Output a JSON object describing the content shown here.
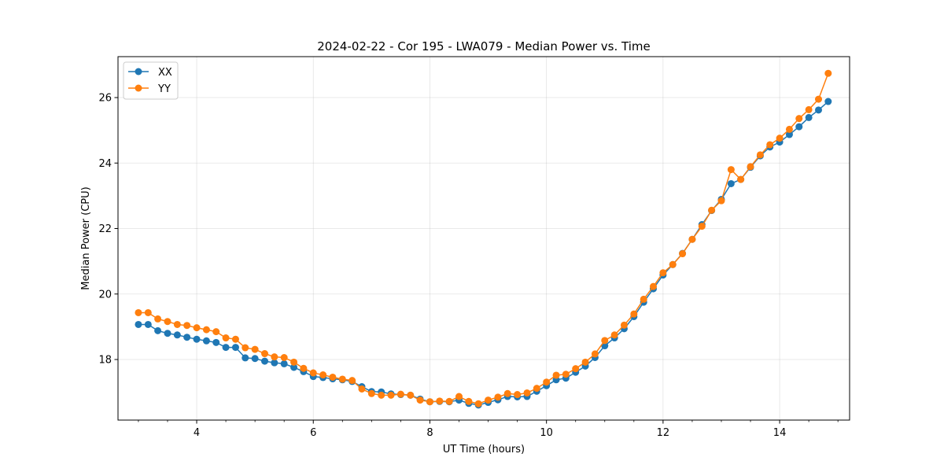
{
  "chart_data": {
    "type": "line",
    "title": "2024-02-22 - Cor 195 - LWA079 - Median Power vs. Time",
    "xlabel": "UT Time (hours)",
    "ylabel": "Median Power (CPU)",
    "xlim": [
      2.65,
      15.2
    ],
    "ylim": [
      16.15,
      27.25
    ],
    "xticks": [
      4,
      6,
      8,
      10,
      12,
      14
    ],
    "xtick_labels": [
      "4",
      "6",
      "8",
      "10",
      "12",
      "14"
    ],
    "yticks": [
      18,
      20,
      22,
      24,
      26
    ],
    "ytick_labels": [
      "18",
      "20",
      "22",
      "24",
      "26"
    ],
    "grid": true,
    "legend_position": "top-left",
    "x": [
      3.0,
      3.167,
      3.333,
      3.5,
      3.667,
      3.833,
      4.0,
      4.167,
      4.333,
      4.5,
      4.667,
      4.833,
      5.0,
      5.167,
      5.333,
      5.5,
      5.667,
      5.833,
      6.0,
      6.167,
      6.333,
      6.5,
      6.667,
      6.833,
      7.0,
      7.167,
      7.333,
      7.5,
      7.667,
      7.833,
      8.0,
      8.167,
      8.333,
      8.5,
      8.667,
      8.833,
      9.0,
      9.167,
      9.333,
      9.5,
      9.667,
      9.833,
      10.0,
      10.167,
      10.333,
      10.5,
      10.667,
      10.833,
      11.0,
      11.167,
      11.333,
      11.5,
      11.667,
      11.833,
      12.0,
      12.167,
      12.333,
      12.5,
      12.667,
      12.833,
      13.0,
      13.167,
      13.333,
      13.5,
      13.667,
      13.833,
      14.0,
      14.167,
      14.333,
      14.5,
      14.667,
      14.833
    ],
    "series": [
      {
        "name": "XX",
        "color": "#1f77b4",
        "values": [
          19.07,
          19.07,
          18.88,
          18.8,
          18.75,
          18.68,
          18.62,
          18.57,
          18.52,
          18.37,
          18.37,
          18.05,
          18.03,
          17.95,
          17.9,
          17.87,
          17.76,
          17.63,
          17.48,
          17.45,
          17.41,
          17.38,
          17.33,
          17.17,
          17.02,
          17.01,
          16.95,
          16.93,
          16.91,
          16.79,
          16.71,
          16.72,
          16.71,
          16.76,
          16.66,
          16.61,
          16.69,
          16.77,
          16.87,
          16.86,
          16.87,
          17.03,
          17.2,
          17.38,
          17.43,
          17.61,
          17.8,
          18.06,
          18.42,
          18.66,
          18.94,
          19.31,
          19.75,
          20.16,
          20.58,
          20.9,
          21.24,
          21.67,
          22.12,
          22.55,
          22.89,
          23.37,
          23.5,
          23.87,
          24.22,
          24.49,
          24.64,
          24.87,
          25.11,
          25.39,
          25.62,
          25.88
        ]
      },
      {
        "name": "YY",
        "color": "#ff7f0e",
        "values": [
          19.43,
          19.43,
          19.24,
          19.16,
          19.07,
          19.04,
          18.97,
          18.91,
          18.85,
          18.66,
          18.62,
          18.36,
          18.31,
          18.18,
          18.08,
          18.06,
          17.92,
          17.73,
          17.59,
          17.53,
          17.46,
          17.4,
          17.36,
          17.1,
          16.96,
          16.91,
          16.91,
          16.94,
          16.91,
          16.76,
          16.71,
          16.73,
          16.72,
          16.87,
          16.72,
          16.65,
          16.76,
          16.85,
          16.96,
          16.93,
          16.98,
          17.12,
          17.31,
          17.52,
          17.55,
          17.72,
          17.92,
          18.17,
          18.58,
          18.75,
          19.05,
          19.39,
          19.84,
          20.23,
          20.65,
          20.9,
          21.23,
          21.67,
          22.07,
          22.56,
          22.85,
          23.8,
          23.5,
          23.89,
          24.25,
          24.56,
          24.76,
          25.03,
          25.36,
          25.63,
          25.95,
          26.74
        ]
      }
    ]
  }
}
